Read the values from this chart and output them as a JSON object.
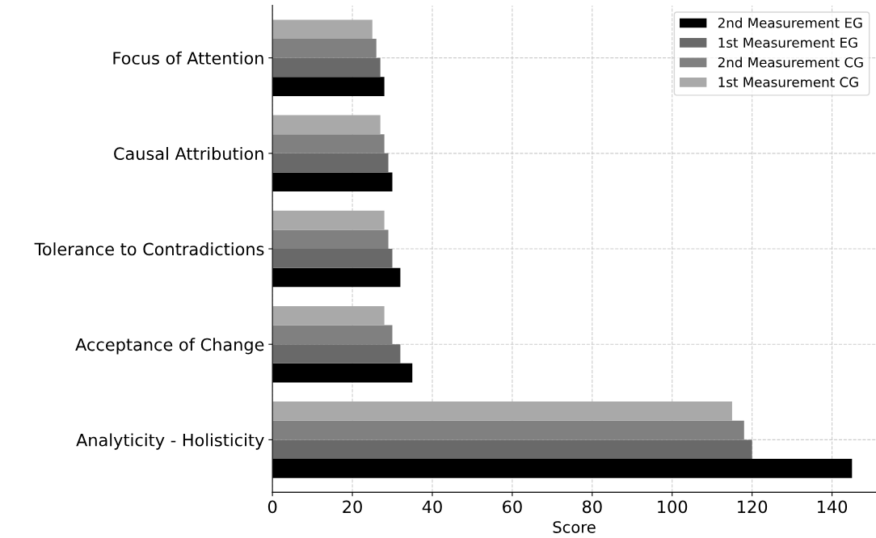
{
  "chart_data": {
    "type": "bar",
    "orientation": "horizontal",
    "xlabel": "Score",
    "categories": [
      "Focus of Attention",
      "Causal Attribution",
      "Tolerance to Contradictions",
      "Acceptance of Change",
      "Analyticity - Holisticity"
    ],
    "series": [
      {
        "name": "2nd Measurement EG",
        "color": "#000000",
        "values": [
          28,
          30,
          32,
          35,
          145
        ]
      },
      {
        "name": "1st Measurement EG",
        "color": "#696969",
        "values": [
          27,
          29,
          30,
          32,
          120
        ]
      },
      {
        "name": "2nd Measurement CG",
        "color": "#808080",
        "values": [
          26,
          28,
          29,
          30,
          118
        ]
      },
      {
        "name": "1st Measurement CG",
        "color": "#a9a9a9",
        "values": [
          25,
          27,
          28,
          28,
          115
        ]
      }
    ],
    "xlim": [
      0,
      151
    ],
    "xticks": [
      0,
      20,
      40,
      60,
      80,
      100,
      120,
      140
    ],
    "grid": true,
    "legend": "top right"
  }
}
